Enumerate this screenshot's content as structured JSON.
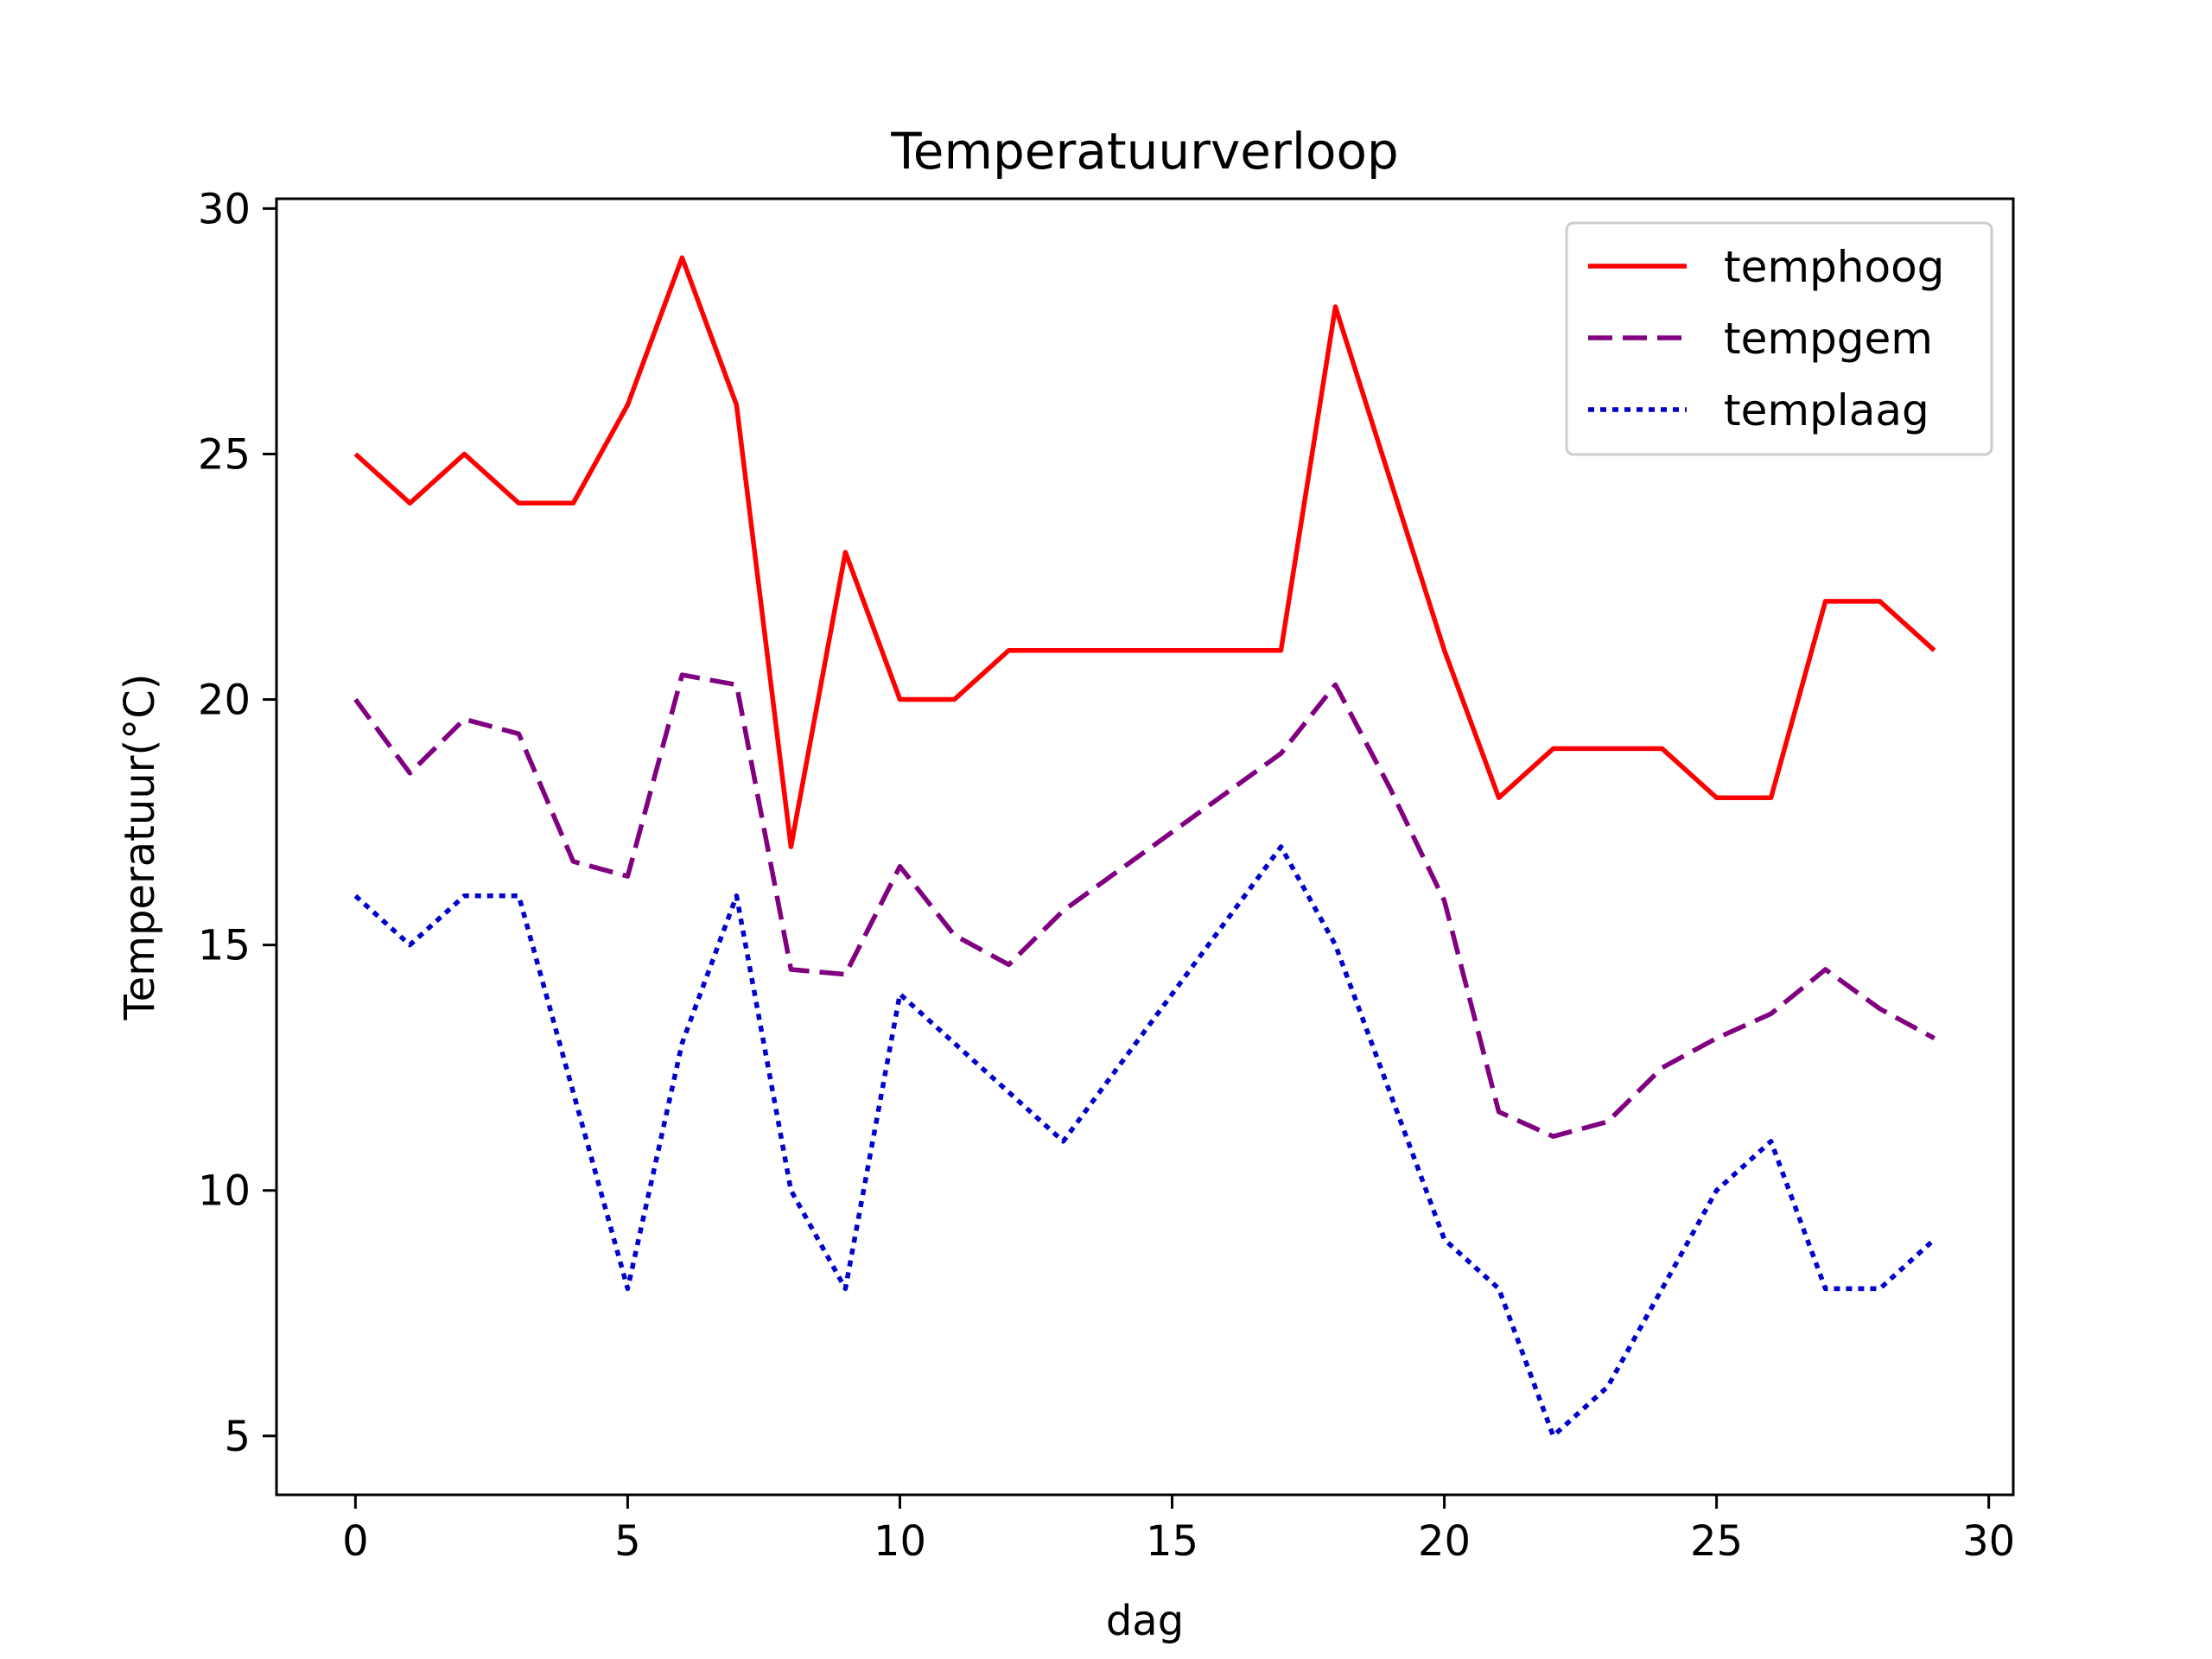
{
  "chart_data": {
    "type": "line",
    "title": "Temperatuurverloop",
    "xlabel": "dag",
    "ylabel": "Temperatuur(°C)",
    "xlim": [
      -1.45,
      30.45
    ],
    "ylim": [
      3.8,
      30.2
    ],
    "xticks": [
      0,
      5,
      10,
      15,
      20,
      25,
      30
    ],
    "yticks": [
      5,
      10,
      15,
      20,
      25,
      30
    ],
    "grid": false,
    "legend_position": "top-right",
    "x": [
      0,
      1,
      2,
      3,
      4,
      5,
      6,
      7,
      8,
      9,
      10,
      11,
      12,
      13,
      14,
      15,
      16,
      17,
      18,
      19,
      20,
      21,
      22,
      23,
      24,
      25,
      26,
      27,
      28,
      29
    ],
    "series": [
      {
        "name": "temphoog",
        "color": "#ff0000",
        "style": "solid",
        "values": [
          25,
          24,
          25,
          24,
          24,
          26,
          29,
          26,
          17,
          23,
          20,
          20,
          21,
          21,
          21,
          21,
          21,
          21,
          28,
          24.5,
          21,
          18,
          19,
          19,
          19,
          18,
          18,
          22,
          22,
          21
        ]
      },
      {
        "name": "tempgem",
        "color": "#800080",
        "style": "dashed",
        "values": [
          20,
          18.5,
          19.6,
          19.3,
          16.7,
          16.4,
          20.5,
          20.3,
          14.5,
          14.4,
          16.6,
          15.2,
          14.6,
          15.7,
          16.5,
          17.3,
          18.1,
          18.9,
          20.3,
          18.2,
          15.9,
          11.6,
          11.1,
          11.4,
          12.5,
          13.1,
          13.6,
          14.5,
          13.7,
          13.1
        ]
      },
      {
        "name": "templaag",
        "color": "#0000cc",
        "style": "dotted",
        "values": [
          16,
          15,
          16,
          16,
          12,
          8,
          13,
          16,
          10,
          8,
          14,
          13,
          12,
          11,
          12.5,
          14,
          15.5,
          17,
          15,
          12,
          9,
          8,
          5,
          6,
          8,
          10,
          11,
          8,
          8,
          9
        ]
      }
    ]
  }
}
